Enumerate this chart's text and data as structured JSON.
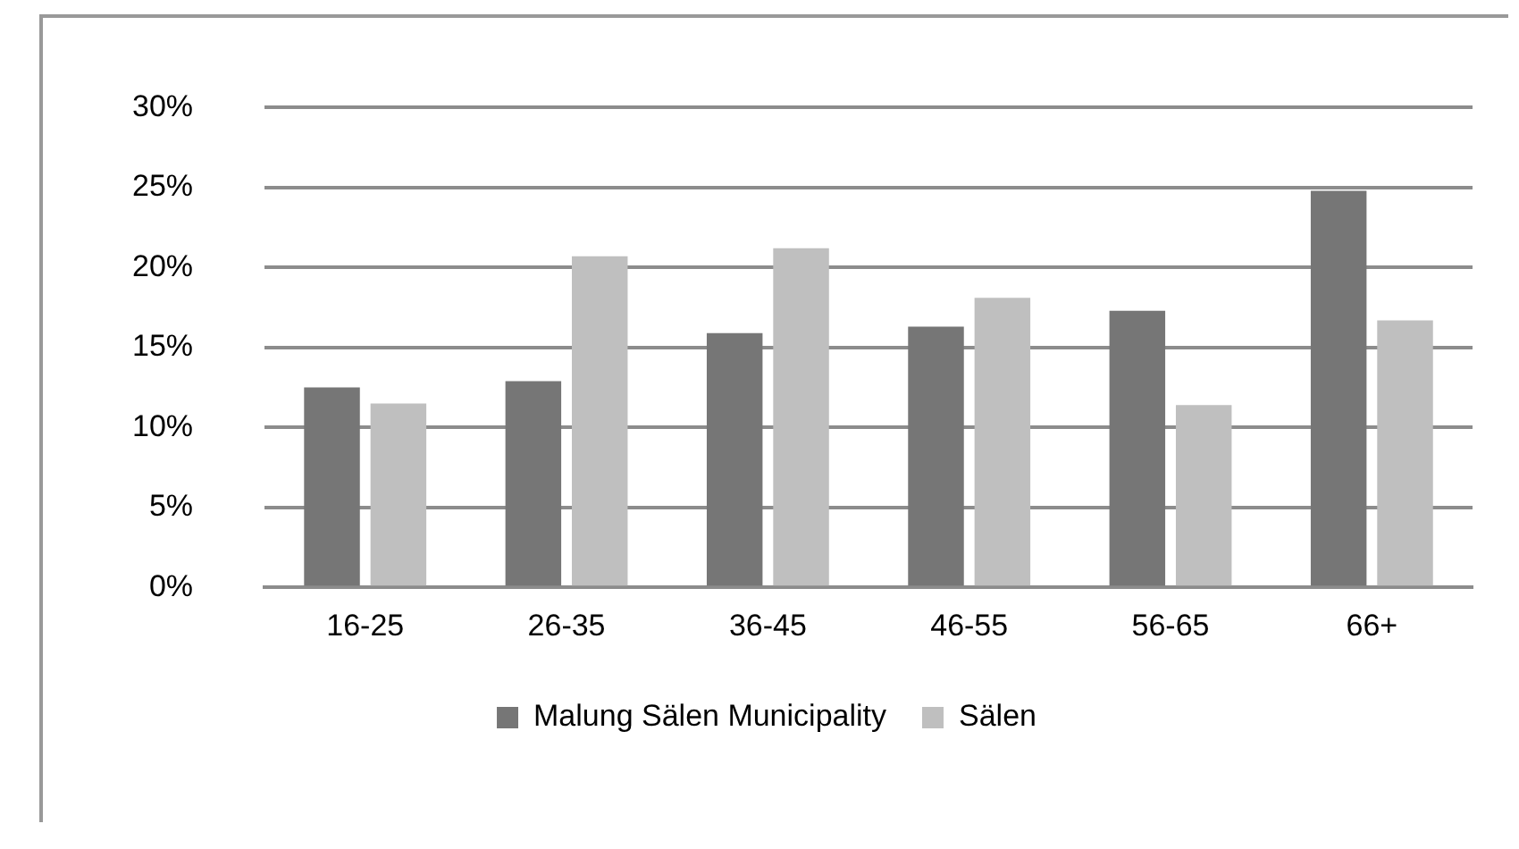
{
  "chart_data": {
    "type": "bar",
    "categories": [
      "16-25",
      "26-35",
      "36-45",
      "46-55",
      "56-65",
      "66+"
    ],
    "series": [
      {
        "name": "Malung Sälen Municipality",
        "color": "#767676",
        "values": [
          12.5,
          12.9,
          15.9,
          16.3,
          17.3,
          24.8
        ]
      },
      {
        "name": "Sälen",
        "color": "#bfbfbf",
        "values": [
          11.5,
          20.7,
          21.2,
          18.1,
          11.4,
          16.7
        ]
      }
    ],
    "ylim": [
      0,
      30
    ],
    "yticks": [
      {
        "value": 0,
        "label": "0%"
      },
      {
        "value": 5,
        "label": "5%"
      },
      {
        "value": 10,
        "label": "10%"
      },
      {
        "value": 15,
        "label": "15%"
      },
      {
        "value": 20,
        "label": "20%"
      },
      {
        "value": 25,
        "label": "25%"
      },
      {
        "value": 30,
        "label": "30%"
      }
    ],
    "grid": "y",
    "legend": "bottom"
  }
}
